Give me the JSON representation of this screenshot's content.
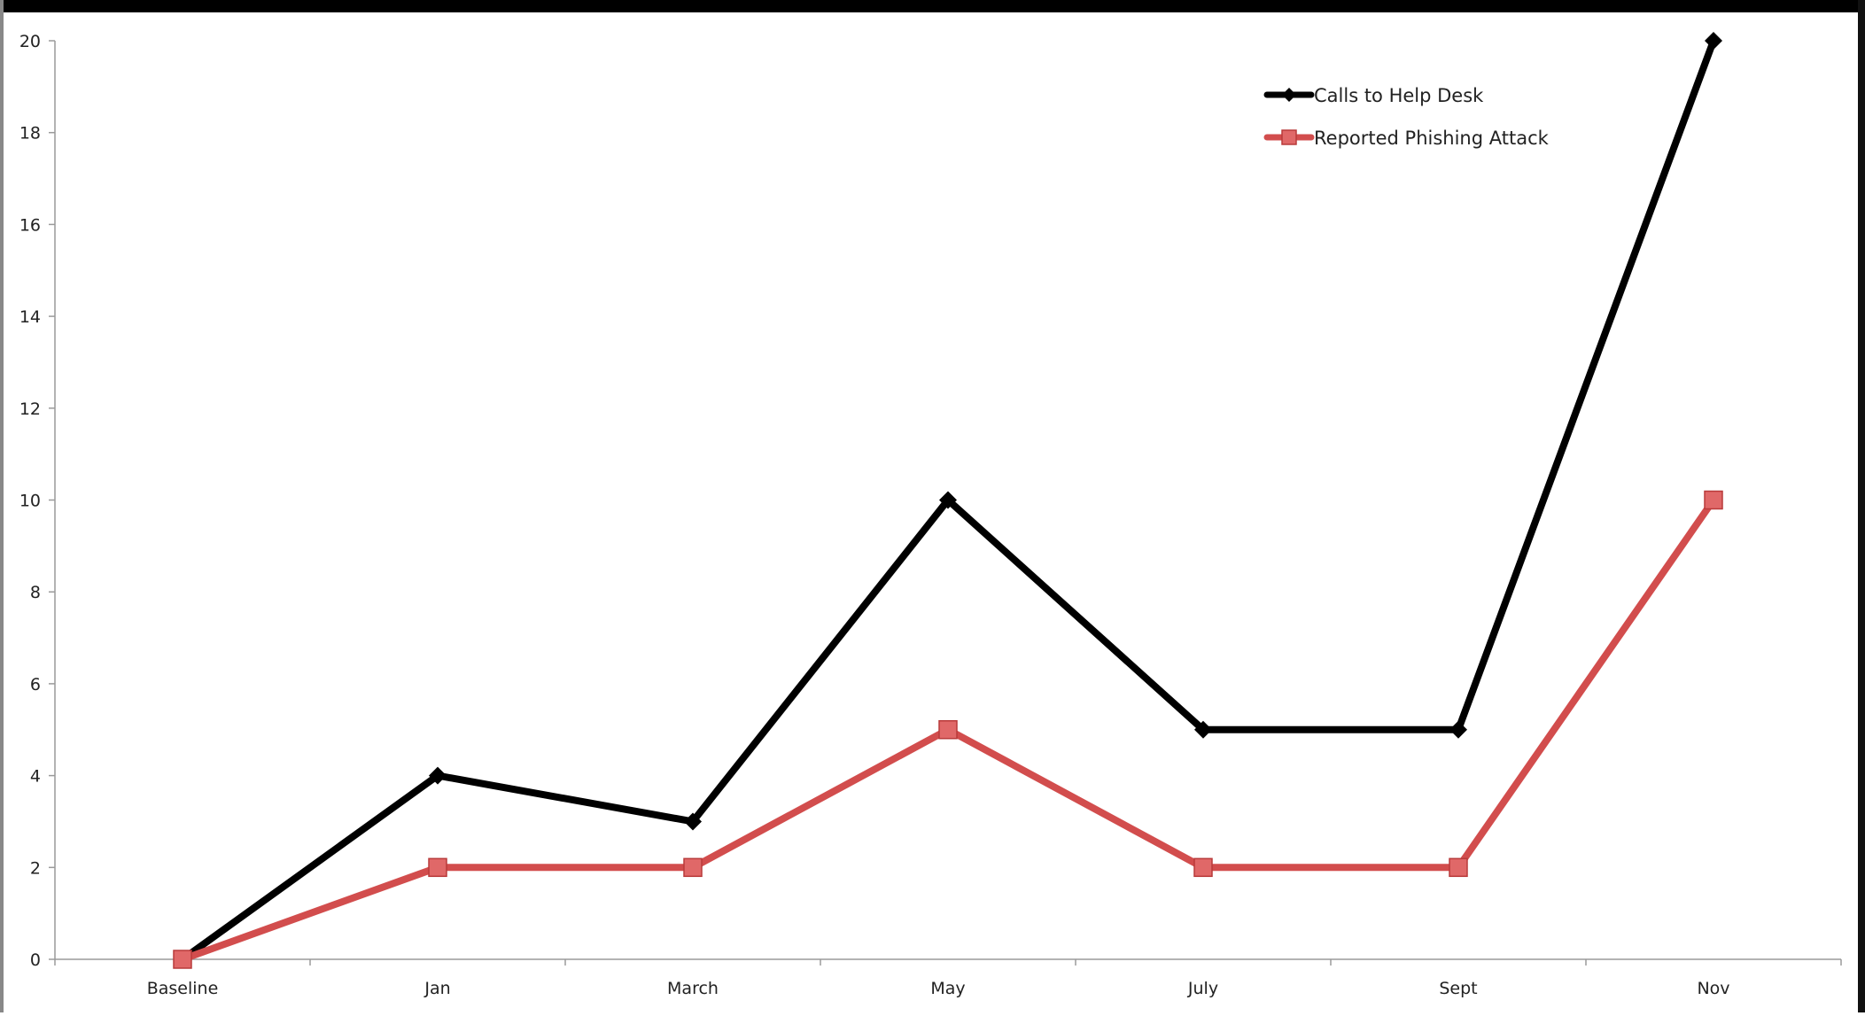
{
  "chart_data": {
    "type": "line",
    "categories": [
      "Baseline",
      "Jan",
      "March",
      "May",
      "July",
      "Sept",
      "Nov"
    ],
    "series": [
      {
        "name": "Calls to Help Desk",
        "values": [
          0,
          4,
          3,
          10,
          5,
          5,
          20
        ],
        "color": "#000000",
        "marker": "diamond"
      },
      {
        "name": "Reported Phishing Attack",
        "values": [
          0,
          2,
          2,
          5,
          2,
          2,
          10
        ],
        "color": "#d24d4d",
        "marker": "square"
      }
    ],
    "yticks": [
      "0",
      "2",
      "4",
      "6",
      "8",
      "10",
      "12",
      "14",
      "16",
      "18",
      "20"
    ],
    "ylim": [
      0,
      20
    ],
    "grid": false,
    "legend_position": "top-right"
  }
}
